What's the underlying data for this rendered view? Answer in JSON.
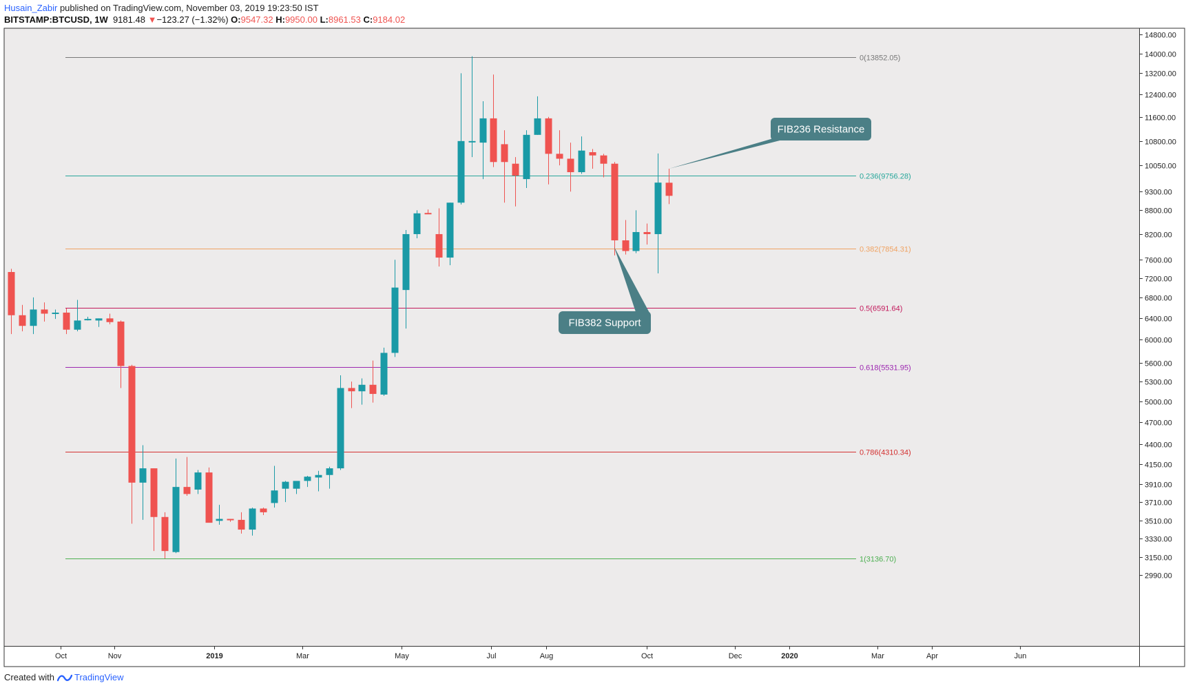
{
  "header": {
    "author": "Husain_Zabir",
    "published": "published on TradingView.com, November 03, 2019 19:23:50 IST",
    "symbol": "BITSTAMP:BTCUSD,",
    "timeframe": "1W",
    "last": "9181.48",
    "change": "−123.27 (−1.32%)",
    "o_label": "O:",
    "o_value": "9547.32",
    "h_label": "H:",
    "h_value": "9950.00",
    "l_label": "L:",
    "l_value": "8961.53",
    "c_label": "C:",
    "c_value": "9184.02"
  },
  "footer": {
    "created": "Created with",
    "brand": "TradingView"
  },
  "colors": {
    "up": "#26a69a",
    "upBody": "#1a9aa6",
    "down": "#ef5350",
    "bg": "#edebeb",
    "fibTop": "#777777"
  },
  "chart_data": {
    "type": "candlestick",
    "title": "",
    "y_scale": "log",
    "ylim": [
      2850,
      14900
    ],
    "y_ticks": [
      {
        "v": 14800,
        "label": "14800.00"
      },
      {
        "v": 14000,
        "label": "14000.00"
      },
      {
        "v": 13200,
        "label": "13200.00"
      },
      {
        "v": 12400,
        "label": "12400.00"
      },
      {
        "v": 11600,
        "label": "11600.00"
      },
      {
        "v": 10800,
        "label": "10800.00"
      },
      {
        "v": 10050,
        "label": "10050.00"
      },
      {
        "v": 9300,
        "label": "9300.00"
      },
      {
        "v": 8800,
        "label": "8800.00"
      },
      {
        "v": 8200,
        "label": "8200.00"
      },
      {
        "v": 7600,
        "label": "7600.00"
      },
      {
        "v": 7200,
        "label": "7200.00"
      },
      {
        "v": 6800,
        "label": "6800.00"
      },
      {
        "v": 6400,
        "label": "6400.00"
      },
      {
        "v": 6000,
        "label": "6000.00"
      },
      {
        "v": 5600,
        "label": "5600.00"
      },
      {
        "v": 5300,
        "label": "5300.00"
      },
      {
        "v": 5000,
        "label": "5000.00"
      },
      {
        "v": 4700,
        "label": "4700.00"
      },
      {
        "v": 4400,
        "label": "4400.00"
      },
      {
        "v": 4150,
        "label": "4150.00"
      },
      {
        "v": 3910,
        "label": "3910.00"
      },
      {
        "v": 3710,
        "label": "3710.00"
      },
      {
        "v": 3510,
        "label": "3510.00"
      },
      {
        "v": 3330,
        "label": "3330.00"
      },
      {
        "v": 3150,
        "label": "3150.00"
      },
      {
        "v": 2990,
        "label": "2990.00"
      }
    ],
    "x_ticks": [
      {
        "i": 4.5,
        "label": "Oct",
        "bold": false
      },
      {
        "i": 9.4,
        "label": "Nov",
        "bold": false
      },
      {
        "i": 18.5,
        "label": "2019",
        "bold": true
      },
      {
        "i": 26.6,
        "label": "Mar",
        "bold": false
      },
      {
        "i": 35.6,
        "label": "May",
        "bold": false
      },
      {
        "i": 43.8,
        "label": "Jul",
        "bold": false
      },
      {
        "i": 48.8,
        "label": "Aug",
        "bold": false
      },
      {
        "i": 58.0,
        "label": "Oct",
        "bold": false
      },
      {
        "i": 66.0,
        "label": "Dec",
        "bold": false
      },
      {
        "i": 71.0,
        "label": "2020",
        "bold": true
      },
      {
        "i": 79.0,
        "label": "Mar",
        "bold": false
      },
      {
        "i": 84.0,
        "label": "Apr",
        "bold": false
      },
      {
        "i": 92.0,
        "label": "Jun",
        "bold": false
      }
    ],
    "candles": [
      [
        7330,
        7400,
        6100,
        6450
      ],
      [
        6450,
        6650,
        6150,
        6250
      ],
      [
        6250,
        6800,
        6100,
        6560
      ],
      [
        6560,
        6700,
        6330,
        6480
      ],
      [
        6480,
        6560,
        6380,
        6500
      ],
      [
        6500,
        6580,
        6100,
        6180
      ],
      [
        6180,
        6750,
        6150,
        6350
      ],
      [
        6380,
        6420,
        6350,
        6380
      ],
      [
        6350,
        6390,
        6230,
        6390
      ],
      [
        6390,
        6480,
        6280,
        6320
      ],
      [
        6330,
        6350,
        5200,
        5550
      ],
      [
        5550,
        5570,
        3480,
        3930
      ],
      [
        3930,
        4390,
        3520,
        4100
      ],
      [
        4100,
        4100,
        3210,
        3550
      ],
      [
        3550,
        3600,
        3140,
        3210
      ],
      [
        3200,
        4220,
        3190,
        3880
      ],
      [
        3880,
        4240,
        3780,
        3800
      ],
      [
        3850,
        4080,
        3800,
        4050
      ],
      [
        4050,
        4110,
        3510,
        3490
      ],
      [
        3510,
        3680,
        3470,
        3530
      ],
      [
        3530,
        3530,
        3500,
        3520
      ],
      [
        3520,
        3600,
        3380,
        3420
      ],
      [
        3420,
        3650,
        3360,
        3640
      ],
      [
        3640,
        3650,
        3570,
        3600
      ],
      [
        3700,
        4130,
        3650,
        3840
      ],
      [
        3860,
        3950,
        3710,
        3940
      ],
      [
        3860,
        3940,
        3800,
        3950
      ],
      [
        3950,
        4010,
        3880,
        4000
      ],
      [
        3990,
        4070,
        3830,
        4020
      ],
      [
        4020,
        4120,
        3860,
        4100
      ],
      [
        4100,
        5400,
        4080,
        5200
      ],
      [
        5200,
        5300,
        4900,
        5150
      ],
      [
        5150,
        5350,
        4950,
        5250
      ],
      [
        5250,
        5640,
        4980,
        5110
      ],
      [
        5100,
        5860,
        5080,
        5770
      ],
      [
        5770,
        7600,
        5700,
        7000
      ],
      [
        6950,
        8300,
        6200,
        8200
      ],
      [
        8200,
        8800,
        8100,
        8720
      ],
      [
        8730,
        8820,
        8700,
        8720
      ],
      [
        8200,
        8850,
        7450,
        7650
      ],
      [
        7650,
        9000,
        7480,
        9000
      ],
      [
        9000,
        13200,
        8950,
        10800
      ],
      [
        10800,
        13880,
        10300,
        10800
      ],
      [
        10750,
        12150,
        9650,
        11550
      ],
      [
        11550,
        13150,
        10000,
        10150
      ],
      [
        10700,
        11150,
        9000,
        10150
      ],
      [
        10100,
        10300,
        8900,
        9750
      ],
      [
        9650,
        11150,
        9400,
        11000
      ],
      [
        11000,
        12330,
        11000,
        11550
      ],
      [
        11550,
        11600,
        9500,
        10400
      ],
      [
        10400,
        11150,
        10050,
        10250
      ],
      [
        10250,
        10750,
        9300,
        9850
      ],
      [
        9850,
        10950,
        9800,
        10500
      ],
      [
        10450,
        10550,
        9950,
        10350
      ],
      [
        10350,
        10400,
        9700,
        10100
      ],
      [
        10100,
        10150,
        7700,
        8050
      ],
      [
        8050,
        8550,
        7720,
        7800
      ],
      [
        7800,
        8800,
        7750,
        8250
      ],
      [
        8250,
        8460,
        7950,
        8200
      ],
      [
        8200,
        10410,
        7300,
        9550
      ],
      [
        9547,
        9950,
        8961,
        9184
      ]
    ],
    "fib_levels": [
      {
        "ratio": "0",
        "value": 13852.05,
        "label": "0(13852.05)",
        "color": "#787878"
      },
      {
        "ratio": "0.236",
        "value": 9756.28,
        "label": "0.236(9756.28)",
        "color": "#26a69a"
      },
      {
        "ratio": "0.382",
        "value": 7854.31,
        "label": "0.382(7854.31)",
        "color": "#f0a261"
      },
      {
        "ratio": "0.5",
        "value": 6591.64,
        "label": "0.5(6591.64)",
        "color": "#c2185b"
      },
      {
        "ratio": "0.618",
        "value": 5531.95,
        "label": "0.618(5531.95)",
        "color": "#9c27b0"
      },
      {
        "ratio": "0.786",
        "value": 4310.34,
        "label": "0.786(4310.34)",
        "color": "#d32f2f"
      },
      {
        "ratio": "1",
        "value": 3136.7,
        "label": "1(3136.70)",
        "color": "#4caf50"
      }
    ],
    "annotations": [
      {
        "text": "FIB236 Resistance",
        "color": "#4b7f86",
        "point_index": 60,
        "point_value": 9950
      },
      {
        "text": "FIB382 Support",
        "color": "#4b7f86",
        "point_index": 55,
        "point_value": 7900
      }
    ]
  }
}
